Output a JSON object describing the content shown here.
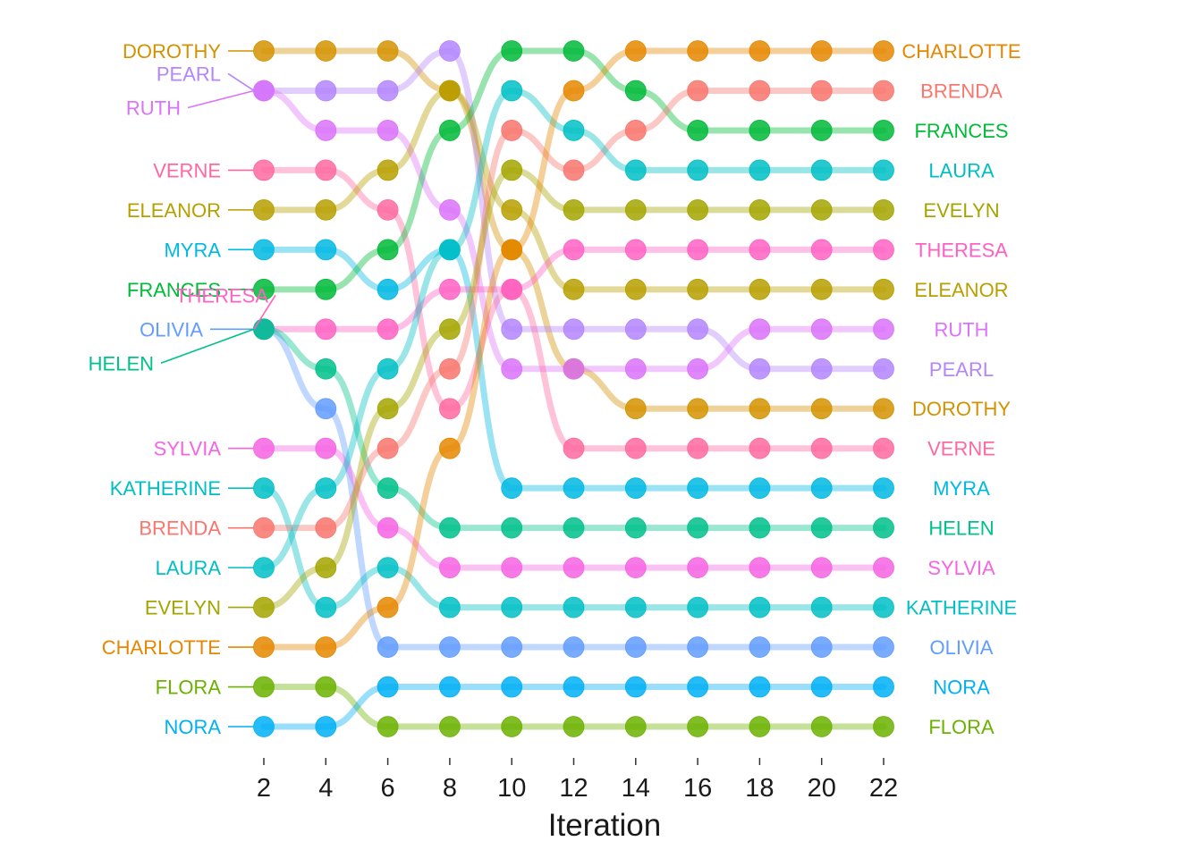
{
  "chart_data": {
    "type": "line",
    "xlabel": "Iteration",
    "x": [
      2,
      4,
      6,
      8,
      10,
      12,
      14,
      16,
      18,
      20,
      22
    ],
    "x_ticks": [
      "2",
      "4",
      "6",
      "8",
      "10",
      "12",
      "14",
      "16",
      "18",
      "20",
      "22"
    ],
    "y_meaning": "rank (1 = top)",
    "ylim": [
      1,
      18
    ],
    "grid": false,
    "legend": "none (labels at line ends)",
    "series": [
      {
        "name": "DOROTHY",
        "color": "#D39200",
        "ranks": [
          1,
          1,
          1,
          2,
          6,
          9,
          10,
          10,
          10,
          10,
          10
        ]
      },
      {
        "name": "PEARL",
        "color": "#B385FF",
        "ranks": [
          2,
          2,
          2,
          1,
          8,
          8,
          8,
          8,
          9,
          9,
          9
        ]
      },
      {
        "name": "RUTH",
        "color": "#DB72FB",
        "ranks": [
          2,
          3,
          3,
          5,
          9,
          9,
          9,
          9,
          8,
          8,
          8
        ]
      },
      {
        "name": "VERNE",
        "color": "#FF689F",
        "ranks": [
          4,
          4,
          5,
          10,
          7,
          11,
          11,
          11,
          11,
          11,
          11
        ]
      },
      {
        "name": "ELEANOR",
        "color": "#B79F00",
        "ranks": [
          5,
          5,
          4,
          2,
          5,
          7,
          7,
          7,
          7,
          7,
          7
        ]
      },
      {
        "name": "MYRA",
        "color": "#00B9E3",
        "ranks": [
          6,
          6,
          7,
          6,
          12,
          12,
          12,
          12,
          12,
          12,
          12
        ]
      },
      {
        "name": "FRANCES",
        "color": "#00BA38",
        "ranks": [
          7,
          7,
          6,
          3,
          1,
          1,
          2,
          3,
          3,
          3,
          3
        ]
      },
      {
        "name": "THERESA",
        "color": "#FF61C3",
        "ranks": [
          8,
          8,
          8,
          7,
          7,
          6,
          6,
          6,
          6,
          6,
          6
        ]
      },
      {
        "name": "OLIVIA",
        "color": "#619CFF",
        "ranks": [
          8,
          10,
          16,
          16,
          16,
          16,
          16,
          16,
          16,
          16,
          16
        ]
      },
      {
        "name": "HELEN",
        "color": "#00C08B",
        "ranks": [
          8,
          9,
          12,
          13,
          13,
          13,
          13,
          13,
          13,
          13,
          13
        ]
      },
      {
        "name": "SYLVIA",
        "color": "#F564E3",
        "ranks": [
          11,
          11,
          13,
          14,
          14,
          14,
          14,
          14,
          14,
          14,
          14
        ]
      },
      {
        "name": "KATHERINE",
        "color": "#00BFC4",
        "ranks": [
          12,
          15,
          14,
          15,
          15,
          15,
          15,
          15,
          15,
          15,
          15
        ]
      },
      {
        "name": "BRENDA",
        "color": "#F8766D",
        "ranks": [
          13,
          13,
          11,
          9,
          3,
          4,
          3,
          2,
          2,
          2,
          2
        ]
      },
      {
        "name": "LAURA",
        "color": "#00BFC4",
        "ranks": [
          14,
          12,
          9,
          6,
          2,
          3,
          4,
          4,
          4,
          4,
          4
        ]
      },
      {
        "name": "EVELYN",
        "color": "#A3A500",
        "ranks": [
          15,
          14,
          10,
          8,
          4,
          5,
          5,
          5,
          5,
          5,
          5
        ]
      },
      {
        "name": "CHARLOTTE",
        "color": "#E58700",
        "ranks": [
          16,
          16,
          15,
          11,
          6,
          2,
          1,
          1,
          1,
          1,
          1
        ]
      },
      {
        "name": "FLORA",
        "color": "#6BB100",
        "ranks": [
          17,
          17,
          18,
          18,
          18,
          18,
          18,
          18,
          18,
          18,
          18
        ]
      },
      {
        "name": "NORA",
        "color": "#00B0F6",
        "ranks": [
          18,
          18,
          17,
          17,
          17,
          17,
          17,
          17,
          17,
          17,
          17
        ]
      }
    ],
    "start_labels": [
      {
        "text": "DOROTHY",
        "series": 0
      },
      {
        "text": "PEARL",
        "series": 1
      },
      {
        "text": "RUTH",
        "series": 2
      },
      {
        "text": "VERNE",
        "series": 3
      },
      {
        "text": "ELEANOR",
        "series": 4
      },
      {
        "text": "MYRA",
        "series": 5
      },
      {
        "text": "FRANCES",
        "series": 6
      },
      {
        "text": "THERESA",
        "series": 7
      },
      {
        "text": "OLIVIA",
        "series": 8
      },
      {
        "text": "HELEN",
        "series": 9
      },
      {
        "text": "SYLVIA",
        "series": 10
      },
      {
        "text": "KATHERINE",
        "series": 11
      },
      {
        "text": "BRENDA",
        "series": 12
      },
      {
        "text": "LAURA",
        "series": 13
      },
      {
        "text": "EVELYN",
        "series": 14
      },
      {
        "text": "CHARLOTTE",
        "series": 15
      },
      {
        "text": "FLORA",
        "series": 16
      },
      {
        "text": "NORA",
        "series": 17
      }
    ],
    "end_labels": [
      {
        "text": "CHARLOTTE",
        "series": 15
      },
      {
        "text": "BRENDA",
        "series": 12
      },
      {
        "text": "FRANCES",
        "series": 6
      },
      {
        "text": "LAURA",
        "series": 13
      },
      {
        "text": "EVELYN",
        "series": 14
      },
      {
        "text": "THERESA",
        "series": 7
      },
      {
        "text": "ELEANOR",
        "series": 4
      },
      {
        "text": "RUTH",
        "series": 2
      },
      {
        "text": "PEARL",
        "series": 1
      },
      {
        "text": "DOROTHY",
        "series": 0
      },
      {
        "text": "VERNE",
        "series": 3
      },
      {
        "text": "MYRA",
        "series": 5
      },
      {
        "text": "HELEN",
        "series": 9
      },
      {
        "text": "SYLVIA",
        "series": 10
      },
      {
        "text": "KATHERINE",
        "series": 11
      },
      {
        "text": "OLIVIA",
        "series": 8
      },
      {
        "text": "NORA",
        "series": 17
      },
      {
        "text": "FLORA",
        "series": 16
      }
    ]
  }
}
